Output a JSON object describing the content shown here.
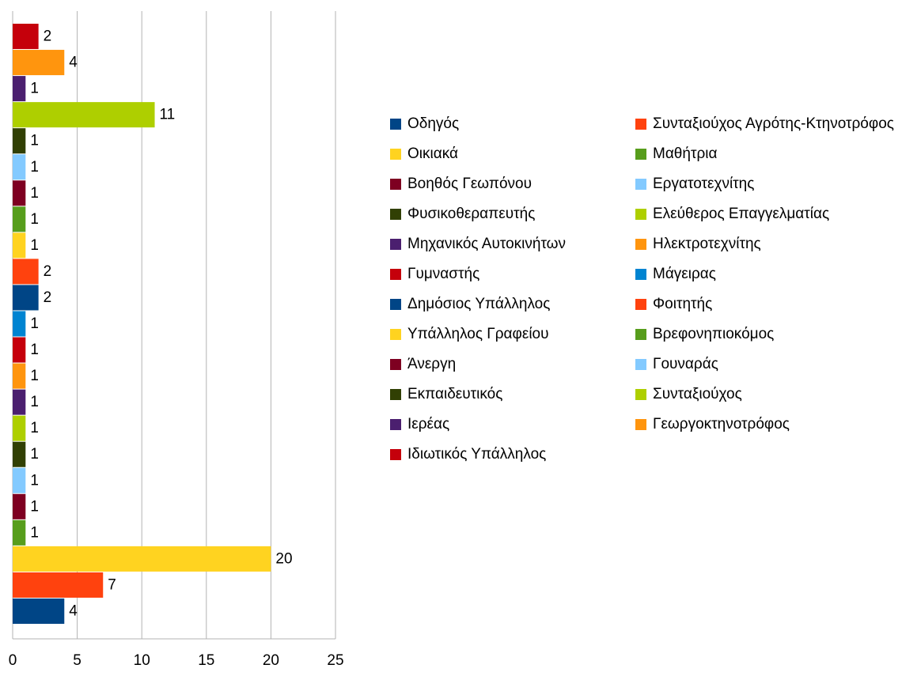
{
  "chart_data": {
    "type": "bar",
    "orientation": "horizontal",
    "xlim": [
      0,
      25
    ],
    "xticks": [
      0,
      5,
      10,
      15,
      20,
      25
    ],
    "grid": true,
    "legend": "right",
    "series": [
      {
        "name": "Οδηγός",
        "color": "#004586",
        "values": [
          4
        ]
      },
      {
        "name": "Συνταξιούχος Αγρότης-Κτηνοτρόφος",
        "color": "#ff420e",
        "values": [
          7
        ]
      },
      {
        "name": "Οικιακά",
        "color": "#ffd320",
        "values": [
          20
        ]
      },
      {
        "name": "Μαθήτρια",
        "color": "#579d1c",
        "values": [
          1
        ]
      },
      {
        "name": "Βοηθός Γεωπόνου",
        "color": "#7e0021",
        "values": [
          1
        ]
      },
      {
        "name": "Εργατοτεχνίτης",
        "color": "#83caff",
        "values": [
          1
        ]
      },
      {
        "name": "Φυσικοθεραπευτής",
        "color": "#314004",
        "values": [
          1
        ]
      },
      {
        "name": "Ελεύθερος Επαγγελματίας",
        "color": "#aecf00",
        "values": [
          1
        ]
      },
      {
        "name": "Μηχανικός Αυτοκινήτων",
        "color": "#4b1f6f",
        "values": [
          1
        ]
      },
      {
        "name": "Ηλεκτροτεχνίτης",
        "color": "#ff950e",
        "values": [
          1
        ]
      },
      {
        "name": "Γυμναστής",
        "color": "#c5000b",
        "values": [
          1
        ]
      },
      {
        "name": "Μάγειρας",
        "color": "#0084d1",
        "values": [
          1
        ]
      },
      {
        "name": "Δημόσιος Υπάλληλος",
        "color": "#004586",
        "values": [
          2
        ]
      },
      {
        "name": "Φοιτητής",
        "color": "#ff420e",
        "values": [
          2
        ]
      },
      {
        "name": "Υπάλληλος Γραφείου",
        "color": "#ffd320",
        "values": [
          1
        ]
      },
      {
        "name": "Βρεφονηπιοκόμος",
        "color": "#579d1c",
        "values": [
          1
        ]
      },
      {
        "name": "Άνεργη",
        "color": "#7e0021",
        "values": [
          1
        ]
      },
      {
        "name": "Γουναράς",
        "color": "#83caff",
        "values": [
          1
        ]
      },
      {
        "name": "Εκπαιδευτικός",
        "color": "#314004",
        "values": [
          1
        ]
      },
      {
        "name": "Συνταξιούχος",
        "color": "#aecf00",
        "values": [
          11
        ]
      },
      {
        "name": "Ιερέας",
        "color": "#4b1f6f",
        "values": [
          1
        ]
      },
      {
        "name": "Γεωργοκτηνοτρόφος",
        "color": "#ff950e",
        "values": [
          4
        ]
      },
      {
        "name": "Ιδιωτικός Υπάλληλος",
        "color": "#c5000b",
        "values": [
          2
        ]
      }
    ]
  }
}
